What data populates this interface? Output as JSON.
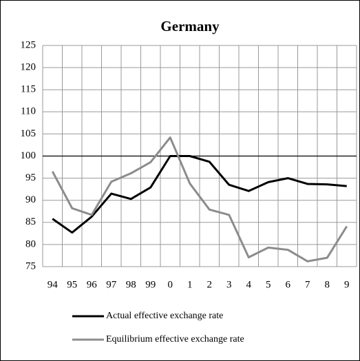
{
  "chart_data": {
    "type": "line",
    "title": "Germany",
    "categories": [
      "94",
      "95",
      "96",
      "97",
      "98",
      "99",
      "0",
      "1",
      "2",
      "3",
      "4",
      "5",
      "6",
      "7",
      "8",
      "9"
    ],
    "series": [
      {
        "name": "Actual effective exchange rate",
        "color": "#000000",
        "values": [
          85.8,
          82.7,
          86.3,
          91.5,
          90.3,
          92.9,
          100,
          100,
          98.7,
          93.5,
          92.1,
          94.1,
          95,
          93.7,
          93.6,
          93.2
        ]
      },
      {
        "name": "Equilibrium effective exchange rate",
        "color": "#8c8c8c",
        "values": [
          96.5,
          88.2,
          86.7,
          94.2,
          96.1,
          98.6,
          104.2,
          93.8,
          87.9,
          86.7,
          77.1,
          79.3,
          78.8,
          76.2,
          77,
          84.1
        ]
      }
    ],
    "ylim": [
      75,
      125
    ],
    "yticks": [
      75,
      80,
      85,
      90,
      95,
      100,
      105,
      110,
      115,
      120,
      125
    ],
    "grid": true,
    "reference_line": 100,
    "legend": "bottom"
  }
}
